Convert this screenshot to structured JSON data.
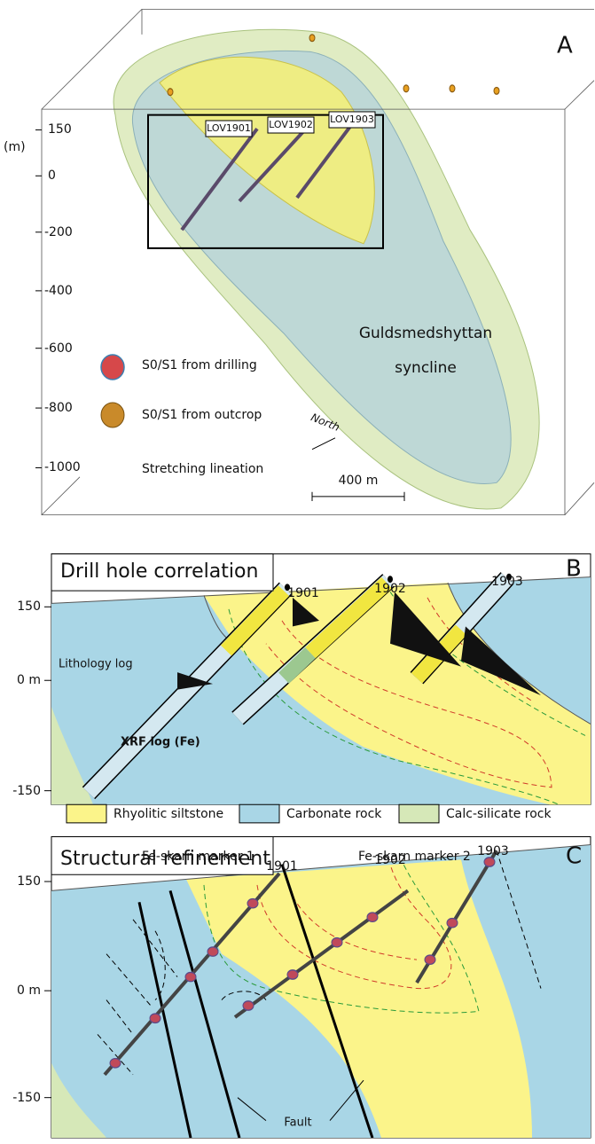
{
  "panel_a": {
    "label": "A",
    "axis_unit": "(m)",
    "depth_ticks": [
      "150",
      "0",
      "-200",
      "-400",
      "-600",
      "-800",
      "-1000"
    ],
    "drill_holes": [
      "LOV1901",
      "LOV1902",
      "LOV1903"
    ],
    "structure_name": [
      "Guldsmedshyttan",
      "syncline"
    ],
    "legend": [
      "S0/S1 from drilling",
      "S0/S1 from outcrop",
      "Stretching lineation"
    ],
    "north": "North",
    "scale_bar": "400 m"
  },
  "panel_b": {
    "label": "B",
    "title": "Drill hole correlation",
    "drill_holes": [
      "1901",
      "1902",
      "1903"
    ],
    "depth_ticks": [
      "150",
      "0 m",
      "-150"
    ],
    "annotations": [
      "Lithology log",
      "XRF log (Fe)"
    ]
  },
  "legend": {
    "units": [
      "Rhyolitic siltstone",
      "Carbonate rock",
      "Calc-silicate rock"
    ],
    "markers": [
      "Fe-skarn marker 1",
      "Fe-skarn marker 2"
    ]
  },
  "panel_c": {
    "label": "C",
    "title": "Structural refinement",
    "drill_holes": [
      "1901",
      "1902",
      "1903"
    ],
    "depth_ticks": [
      "150",
      "0 m",
      "-150"
    ],
    "annotation": "Fault"
  }
}
